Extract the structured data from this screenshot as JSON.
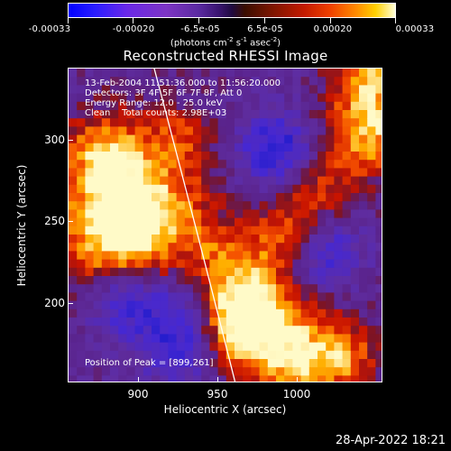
{
  "colorbar": {
    "ticks": [
      "-0.00033",
      "-0.00020",
      "-6.5e-05",
      "6.5e-05",
      "0.00020",
      "0.00033"
    ],
    "units_prefix": "(photons cm",
    "units_exp1": "-2",
    "units_mid1": " s",
    "units_exp2": "-1",
    "units_mid2": " asec",
    "units_exp3": "-2",
    "units_suffix": ")"
  },
  "title": "Reconstructed RHESSI Image",
  "info": {
    "time_range": "13-Feb-2004 11:51:36.000 to 11:56:20.000",
    "detectors": "Detectors: 3F 4F 5F 6F 7F 8F, Att 0",
    "energy": "Energy Range: 12.0 - 25.0 keV",
    "clean": "Clean    Total counts: 2.98E+03",
    "peak": "Position of Peak = [899,261]"
  },
  "axes": {
    "xlabel": "Heliocentric X (arcsec)",
    "ylabel": "Heliocentric Y (arcsec)",
    "xticks": [
      "900",
      "950",
      "1000"
    ],
    "yticks": [
      "300",
      "250",
      "200"
    ]
  },
  "footer": {
    "date": "28-Apr-2022 18:21"
  },
  "colors": {
    "background": "#000000",
    "foreground": "#ffffff",
    "colormap_min": "#0000ff",
    "colormap_max": "#ffffd8"
  }
}
